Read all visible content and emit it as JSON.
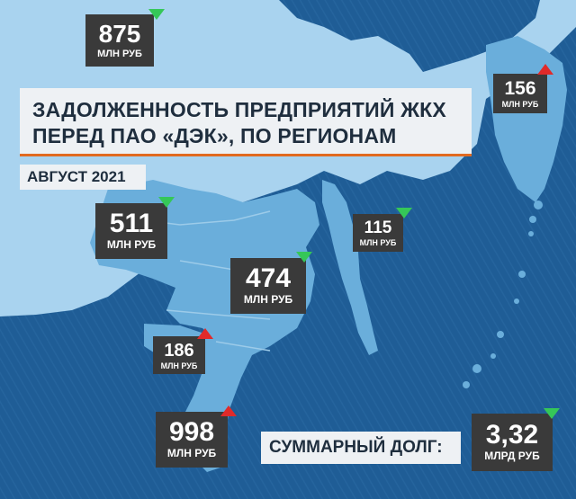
{
  "title": {
    "line1": "ЗАДОЛЖЕННОСТЬ ПРЕДПРИЯТИЙ ЖКХ",
    "line2": "ПЕРЕД ПАО «ДЭК», ПО РЕГИОНАМ",
    "date": "АВГУСТ 2021"
  },
  "colors": {
    "ocean": "#1f5d96",
    "land": "#6aaedb",
    "land_light": "#a9d3ef",
    "box": "#3a3a3a",
    "arrow_down": "#35c758",
    "arrow_up": "#e02a2a",
    "accent_line": "#e26a20"
  },
  "regions": [
    {
      "value": "875",
      "unit": "МЛН РУБ",
      "trend": "down"
    },
    {
      "value": "156",
      "unit": "МЛН РУБ",
      "trend": "up"
    },
    {
      "value": "511",
      "unit": "МЛН РУБ",
      "trend": "down"
    },
    {
      "value": "115",
      "unit": "МЛН РУБ",
      "trend": "down"
    },
    {
      "value": "474",
      "unit": "МЛН РУБ",
      "trend": "down"
    },
    {
      "value": "186",
      "unit": "МЛН РУБ",
      "trend": "up"
    },
    {
      "value": "998",
      "unit": "МЛН РУБ",
      "trend": "up"
    }
  ],
  "total": {
    "label": "СУММАРНЫЙ ДОЛГ:",
    "value": "3,32",
    "unit": "МЛРД РУБ",
    "trend": "down"
  }
}
